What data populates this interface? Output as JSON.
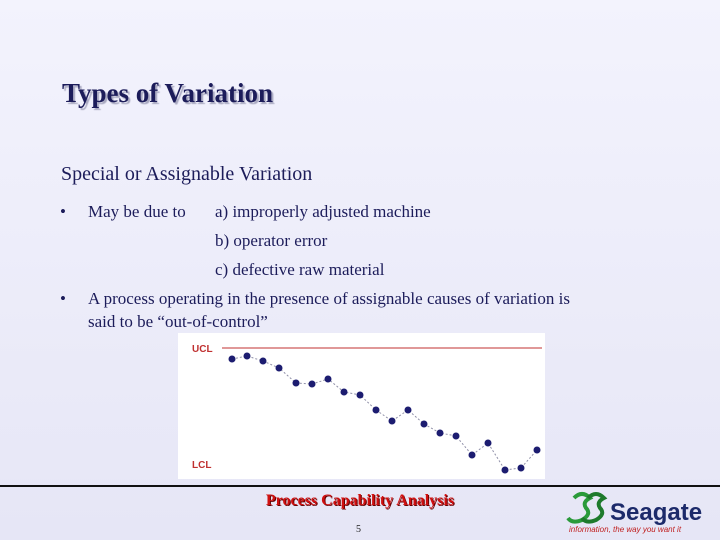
{
  "title": "Types of Variation",
  "subtitle": "Special or Assignable  Variation",
  "bullets": [
    {
      "lines": [
        "May be due to",
        "a)  improperly adjusted machine",
        "b)  operator error",
        "c)  defective raw material"
      ]
    },
    {
      "lines": [
        "A process operating in the presence of assignable causes of variation is",
        "said to be “out-of-control”"
      ]
    }
  ],
  "chart": {
    "upper_label": "UCL",
    "lower_label": "LCL"
  },
  "footer": {
    "text": "Process Capability Analysis",
    "page": "5"
  },
  "logo": {
    "name": "Seagate",
    "tagline": "information, the way you want it"
  }
}
